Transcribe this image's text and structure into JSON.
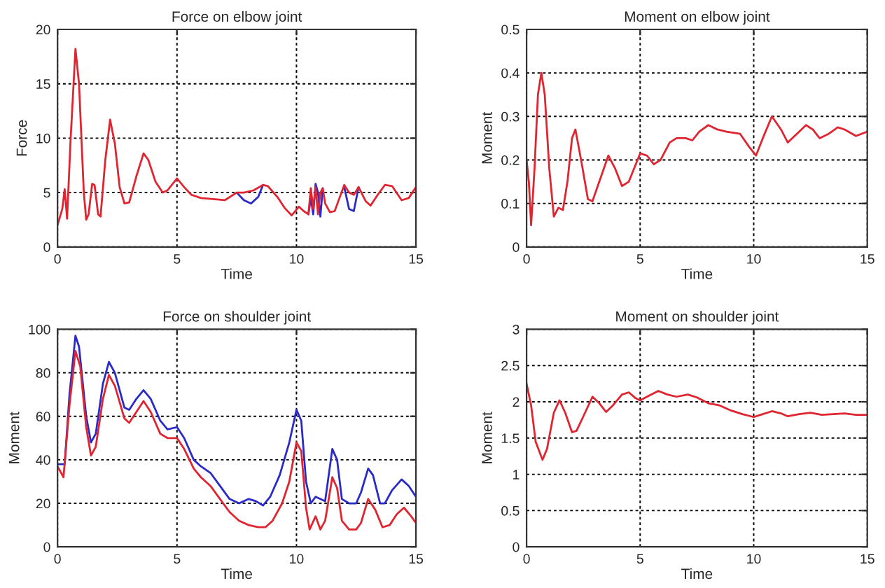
{
  "chart_data": [
    {
      "type": "line",
      "title": "Force on elbow joint",
      "xlabel": "Time",
      "ylabel": "Force",
      "xlim": [
        0,
        15
      ],
      "xticks": [
        0,
        5,
        10,
        15
      ],
      "ylim": [
        0,
        20
      ],
      "yticks": [
        0,
        5,
        10,
        15,
        20
      ],
      "grid": true,
      "series": [
        {
          "color": "#2a2ac8",
          "x": [
            7.5,
            7.8,
            8.1,
            8.4,
            8.6,
            9.0,
            10.5,
            10.6,
            10.7,
            10.8,
            10.9,
            11.0,
            11.1,
            11.5,
            12.0,
            12.2,
            12.4,
            12.6
          ],
          "values": [
            5.0,
            4.3,
            4.0,
            4.6,
            5.7,
            null,
            3.0,
            4.5,
            3.0,
            5.8,
            5.0,
            2.8,
            5.4,
            null,
            5.5,
            3.5,
            3.3,
            5.5
          ]
        },
        {
          "color": "#e02430",
          "x": [
            0,
            0.2,
            0.3,
            0.4,
            0.55,
            0.75,
            0.9,
            1.1,
            1.2,
            1.3,
            1.45,
            1.55,
            1.7,
            1.8,
            2.0,
            2.2,
            2.4,
            2.6,
            2.8,
            3.0,
            3.3,
            3.6,
            3.8,
            4.1,
            4.4,
            4.6,
            5.0,
            5.3,
            5.6,
            6.0,
            6.5,
            7.0,
            7.5,
            7.8,
            8.2,
            8.6,
            8.8,
            9.2,
            9.5,
            9.8,
            10.1,
            10.3,
            10.5,
            10.6,
            10.7,
            10.8,
            10.9,
            11.0,
            11.1,
            11.2,
            11.4,
            11.6,
            11.8,
            12.0,
            12.2,
            12.4,
            12.6,
            12.9,
            13.1,
            13.4,
            13.7,
            14.0,
            14.4,
            14.7,
            15
          ],
          "values": [
            2,
            3.5,
            5.3,
            2.6,
            10,
            18.2,
            15,
            5,
            2.5,
            3,
            5.8,
            5.7,
            3,
            2.8,
            8,
            11.7,
            9.5,
            5.5,
            4.0,
            4.1,
            6.5,
            8.6,
            8,
            6,
            5,
            5.2,
            6.3,
            5.5,
            4.8,
            4.5,
            4.4,
            4.3,
            5.0,
            5.0,
            5.2,
            5.7,
            5.6,
            4.6,
            3.6,
            2.9,
            3.7,
            3.3,
            3.0,
            5.4,
            3.5,
            5.5,
            3.0,
            5.0,
            5.4,
            4.0,
            3.2,
            3.3,
            4.5,
            5.7,
            5.0,
            4.8,
            5.5,
            4.2,
            3.8,
            4.8,
            5.7,
            5.6,
            4.3,
            4.5,
            5.5
          ]
        }
      ]
    },
    {
      "type": "line",
      "title": "Moment on elbow joint",
      "xlabel": "Time",
      "ylabel": "Moment",
      "xlim": [
        0,
        15
      ],
      "xticks": [
        0,
        5,
        10,
        15
      ],
      "ylim": [
        0,
        0.5
      ],
      "yticks": [
        0,
        0.1,
        0.2,
        0.3,
        0.4,
        0.5
      ],
      "grid": true,
      "series": [
        {
          "color": "#e02430",
          "x": [
            0,
            0.1,
            0.2,
            0.35,
            0.5,
            0.65,
            0.8,
            1.0,
            1.2,
            1.4,
            1.6,
            1.8,
            2.0,
            2.15,
            2.4,
            2.7,
            2.9,
            3.2,
            3.6,
            3.9,
            4.2,
            4.5,
            5.0,
            5.3,
            5.6,
            5.9,
            6.3,
            6.6,
            7.0,
            7.3,
            7.6,
            8.0,
            8.4,
            8.8,
            9.4,
            9.8,
            10.1,
            10.4,
            10.8,
            11.2,
            11.5,
            11.9,
            12.3,
            12.6,
            12.9,
            13.3,
            13.7,
            14.0,
            14.5,
            15
          ],
          "values": [
            0.2,
            0.15,
            0.05,
            0.18,
            0.35,
            0.4,
            0.35,
            0.18,
            0.07,
            0.09,
            0.085,
            0.15,
            0.25,
            0.27,
            0.2,
            0.11,
            0.105,
            0.15,
            0.21,
            0.18,
            0.14,
            0.15,
            0.215,
            0.21,
            0.19,
            0.2,
            0.24,
            0.25,
            0.25,
            0.245,
            0.265,
            0.28,
            0.27,
            0.265,
            0.26,
            0.23,
            0.21,
            0.25,
            0.3,
            0.27,
            0.24,
            0.26,
            0.28,
            0.27,
            0.25,
            0.26,
            0.275,
            0.27,
            0.255,
            0.265
          ]
        }
      ]
    },
    {
      "type": "line",
      "title": "Force on shoulder joint",
      "xlabel": "Time",
      "ylabel": "Moment",
      "xlim": [
        0,
        15
      ],
      "xticks": [
        0,
        5,
        10,
        15
      ],
      "ylim": [
        0,
        100
      ],
      "yticks": [
        0,
        20,
        40,
        60,
        80,
        100
      ],
      "grid": true,
      "series": [
        {
          "color": "#2a2ac8",
          "x": [
            0,
            0.3,
            0.5,
            0.75,
            0.9,
            1.2,
            1.4,
            1.6,
            1.9,
            2.15,
            2.4,
            2.8,
            3.0,
            3.3,
            3.6,
            3.9,
            4.3,
            4.6,
            5.0,
            5.3,
            5.7,
            6.0,
            6.4,
            6.8,
            7.2,
            7.6,
            8.0,
            8.3,
            8.6,
            8.9,
            9.3,
            9.7,
            10.0,
            10.2,
            10.4,
            10.6,
            10.8,
            11.0,
            11.2,
            11.5,
            11.7,
            11.9,
            12.2,
            12.5,
            12.7,
            13.0,
            13.2,
            13.5,
            13.7,
            14.0,
            14.4,
            14.7,
            15
          ],
          "values": [
            38,
            38,
            70,
            97,
            92,
            60,
            48,
            52,
            75,
            85,
            80,
            64,
            63,
            68,
            72,
            68,
            58,
            54,
            55,
            50,
            40,
            37,
            34,
            28,
            22,
            20,
            22,
            21,
            19,
            23,
            33,
            48,
            63,
            58,
            30,
            20,
            23,
            22,
            21,
            45,
            40,
            22,
            20,
            20,
            25,
            36,
            33,
            20,
            20,
            26,
            31,
            28,
            23
          ]
        },
        {
          "color": "#e02430",
          "x": [
            0,
            0.25,
            0.5,
            0.75,
            0.95,
            1.2,
            1.4,
            1.6,
            1.9,
            2.15,
            2.4,
            2.8,
            3.0,
            3.3,
            3.6,
            3.9,
            4.3,
            4.6,
            5.0,
            5.3,
            5.7,
            6.0,
            6.4,
            6.8,
            7.2,
            7.6,
            8.0,
            8.4,
            8.7,
            9.0,
            9.4,
            9.7,
            10.0,
            10.2,
            10.4,
            10.55,
            10.8,
            11.0,
            11.2,
            11.5,
            11.7,
            11.9,
            12.2,
            12.5,
            12.7,
            13.0,
            13.3,
            13.6,
            13.9,
            14.2,
            14.5,
            14.8,
            15
          ],
          "values": [
            37,
            32,
            65,
            90,
            83,
            55,
            42,
            46,
            68,
            79,
            74,
            59,
            57,
            62,
            67,
            62,
            52,
            50,
            50,
            45,
            36,
            32,
            28,
            22,
            16,
            12,
            10,
            9,
            9,
            12,
            20,
            30,
            48,
            44,
            18,
            8,
            14,
            8,
            12,
            32,
            27,
            12,
            8,
            8,
            11,
            22,
            17,
            9,
            10,
            15,
            18,
            14,
            11
          ]
        }
      ]
    },
    {
      "type": "line",
      "title": "Moment on shoulder joint",
      "xlabel": "Time",
      "ylabel": "Moment",
      "xlim": [
        0,
        15
      ],
      "xticks": [
        0,
        5,
        10,
        15
      ],
      "ylim": [
        0,
        3
      ],
      "yticks": [
        0,
        0.5,
        1,
        1.5,
        2,
        2.5,
        3
      ],
      "grid": true,
      "series": [
        {
          "color": "#e02430",
          "x": [
            0,
            0.2,
            0.4,
            0.7,
            0.9,
            1.2,
            1.45,
            1.7,
            2.0,
            2.2,
            2.5,
            2.9,
            3.2,
            3.5,
            3.8,
            4.2,
            4.5,
            4.8,
            5.0,
            5.3,
            5.8,
            6.2,
            6.6,
            7.1,
            7.5,
            8.0,
            8.5,
            9.0,
            9.5,
            10.0,
            10.3,
            10.8,
            11.2,
            11.5,
            12.0,
            12.5,
            13.0,
            13.5,
            14.0,
            14.5,
            15
          ],
          "values": [
            2.25,
            1.95,
            1.45,
            1.2,
            1.35,
            1.85,
            2.02,
            1.85,
            1.58,
            1.6,
            1.8,
            2.07,
            1.98,
            1.86,
            1.95,
            2.1,
            2.13,
            2.05,
            2.02,
            2.07,
            2.15,
            2.1,
            2.07,
            2.1,
            2.06,
            1.98,
            1.95,
            1.88,
            1.83,
            1.79,
            1.82,
            1.87,
            1.84,
            1.8,
            1.83,
            1.85,
            1.82,
            1.83,
            1.84,
            1.82,
            1.82
          ]
        }
      ]
    }
  ]
}
